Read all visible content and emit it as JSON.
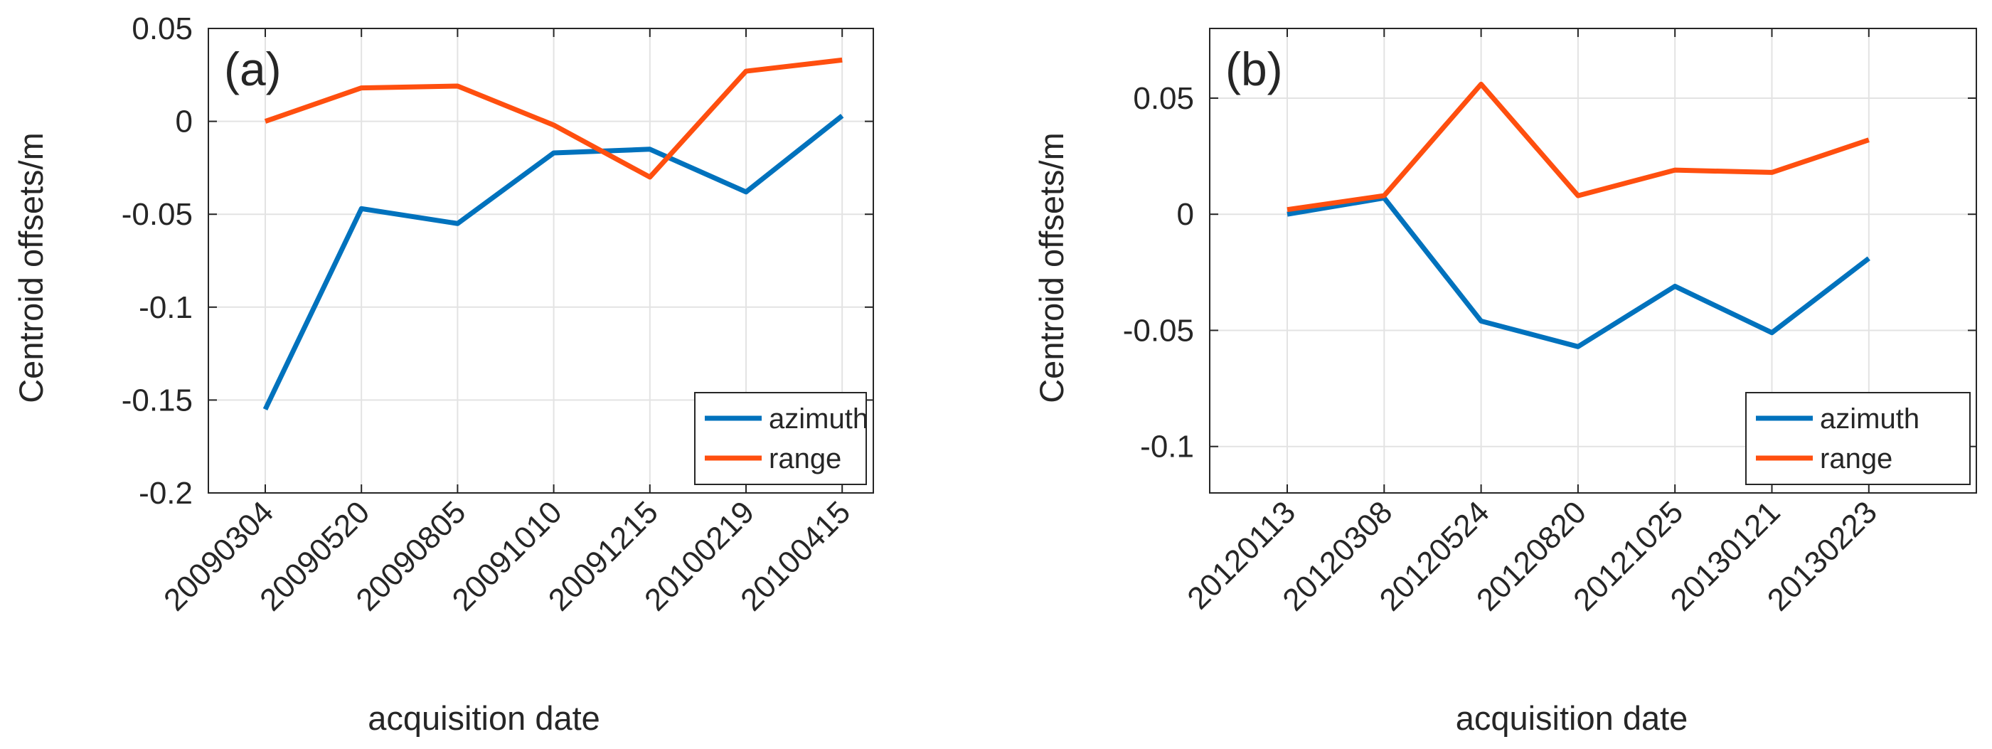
{
  "colors": {
    "azimuth": "#0072BD",
    "range": "#FF4F0F"
  },
  "chart_data": [
    {
      "type": "line",
      "panel_label": "(a)",
      "xlabel": "acquisition date",
      "ylabel": "Centroid offsets/m",
      "categories": [
        "20090304",
        "20090520",
        "20090805",
        "20091010",
        "20091215",
        "20100219",
        "20100415"
      ],
      "ylim": [
        -0.2,
        0.05
      ],
      "yticks": [
        -0.2,
        -0.15,
        -0.1,
        -0.05,
        0,
        0.05
      ],
      "ytick_labels": [
        "-0.2",
        "-0.15",
        "-0.1",
        "-0.05",
        "0",
        "0.05"
      ],
      "grid": true,
      "legend_position": "bottom-right",
      "series": [
        {
          "name": "azimuth",
          "values": [
            -0.155,
            -0.047,
            -0.055,
            -0.017,
            -0.015,
            -0.038,
            0.003
          ]
        },
        {
          "name": "range",
          "values": [
            0.0,
            0.018,
            0.019,
            -0.002,
            -0.03,
            0.027,
            0.033
          ]
        }
      ]
    },
    {
      "type": "line",
      "panel_label": "(b)",
      "xlabel": "acquisition date",
      "ylabel": "Centroid offsets/m",
      "categories": [
        "20120113",
        "20120308",
        "20120524",
        "20120820",
        "20121025",
        "20130121",
        "20130223"
      ],
      "ylim": [
        -0.12,
        0.08
      ],
      "yticks": [
        -0.1,
        -0.05,
        0,
        0.05
      ],
      "ytick_labels": [
        "-0.1",
        "-0.05",
        "0",
        "0.05"
      ],
      "grid": true,
      "legend_position": "bottom-right",
      "series": [
        {
          "name": "azimuth",
          "values": [
            0.0,
            0.007,
            -0.046,
            -0.057,
            -0.031,
            -0.051,
            -0.019
          ]
        },
        {
          "name": "range",
          "values": [
            0.002,
            0.008,
            0.056,
            0.008,
            0.019,
            0.018,
            0.032
          ]
        }
      ]
    }
  ]
}
